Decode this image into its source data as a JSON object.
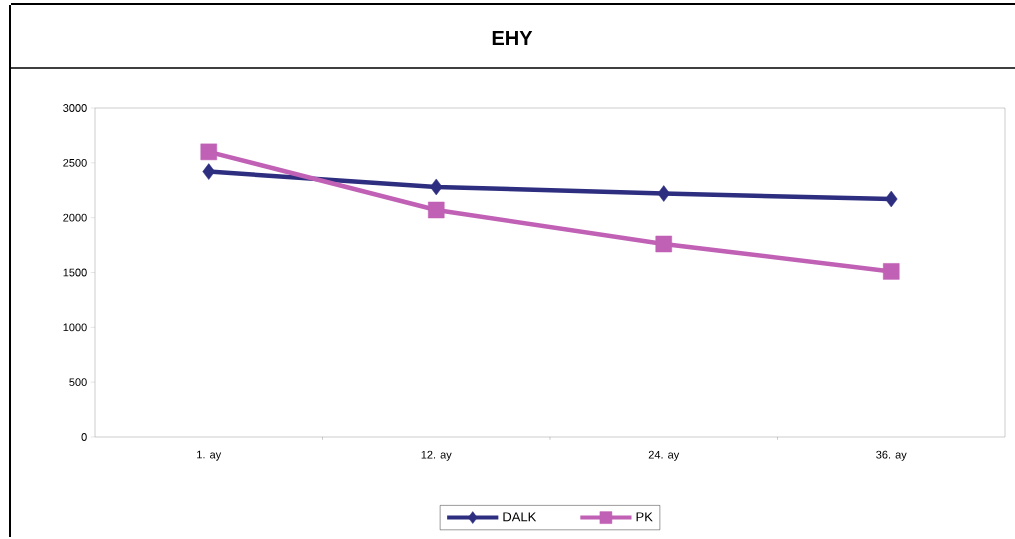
{
  "chart_data": {
    "type": "line",
    "title": "EHY",
    "categories": [
      "1. ay",
      "12. ay",
      "24. ay",
      "36. ay"
    ],
    "series": [
      {
        "name": "DALK",
        "color": "#2e2e80",
        "marker": "diamond",
        "values": [
          2420,
          2280,
          2220,
          2170
        ]
      },
      {
        "name": "PK",
        "color": "#c061b5",
        "marker": "square",
        "values": [
          2600,
          2070,
          1760,
          1510
        ]
      }
    ],
    "ylim": [
      0,
      3000
    ],
    "yticks": [
      0,
      500,
      1000,
      1500,
      2000,
      2500,
      3000
    ],
    "grid": false,
    "legend": "bottom",
    "line_style": "solid"
  }
}
